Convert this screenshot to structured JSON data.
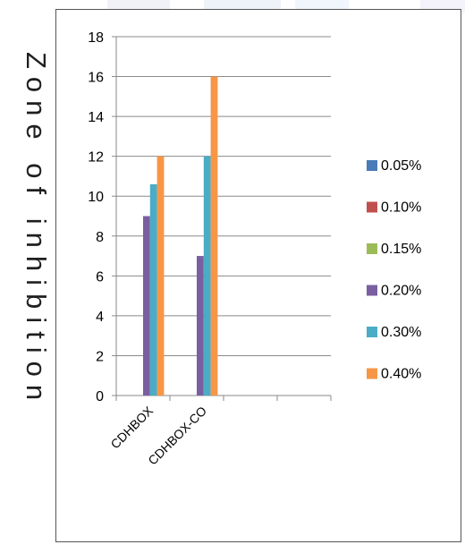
{
  "chart_data": {
    "type": "bar",
    "title": "",
    "xlabel": "",
    "ylabel": "Zone of inhibition",
    "categories": [
      "CDHBOX",
      "CDHBOX-CO",
      "",
      ""
    ],
    "ylim": [
      0,
      18
    ],
    "yticks": [
      0,
      2,
      4,
      6,
      8,
      10,
      12,
      14,
      16,
      18
    ],
    "grid": "horizontal",
    "legend_position": "right",
    "series": [
      {
        "name": "0.05%",
        "color": "#4a7ab8",
        "values": [
          0,
          0,
          0,
          0
        ]
      },
      {
        "name": "0.10%",
        "color": "#c0504d",
        "values": [
          0,
          0,
          0,
          0
        ]
      },
      {
        "name": "0.15%",
        "color": "#9bbb59",
        "values": [
          0,
          0,
          0,
          0
        ]
      },
      {
        "name": "0.20%",
        "color": "#7a5fa0",
        "values": [
          9,
          7,
          0,
          0
        ]
      },
      {
        "name": "0.30%",
        "color": "#4aacc6",
        "values": [
          10.6,
          12,
          0,
          0
        ]
      },
      {
        "name": "0.40%",
        "color": "#f79646",
        "values": [
          12,
          16,
          0,
          0
        ]
      }
    ]
  }
}
